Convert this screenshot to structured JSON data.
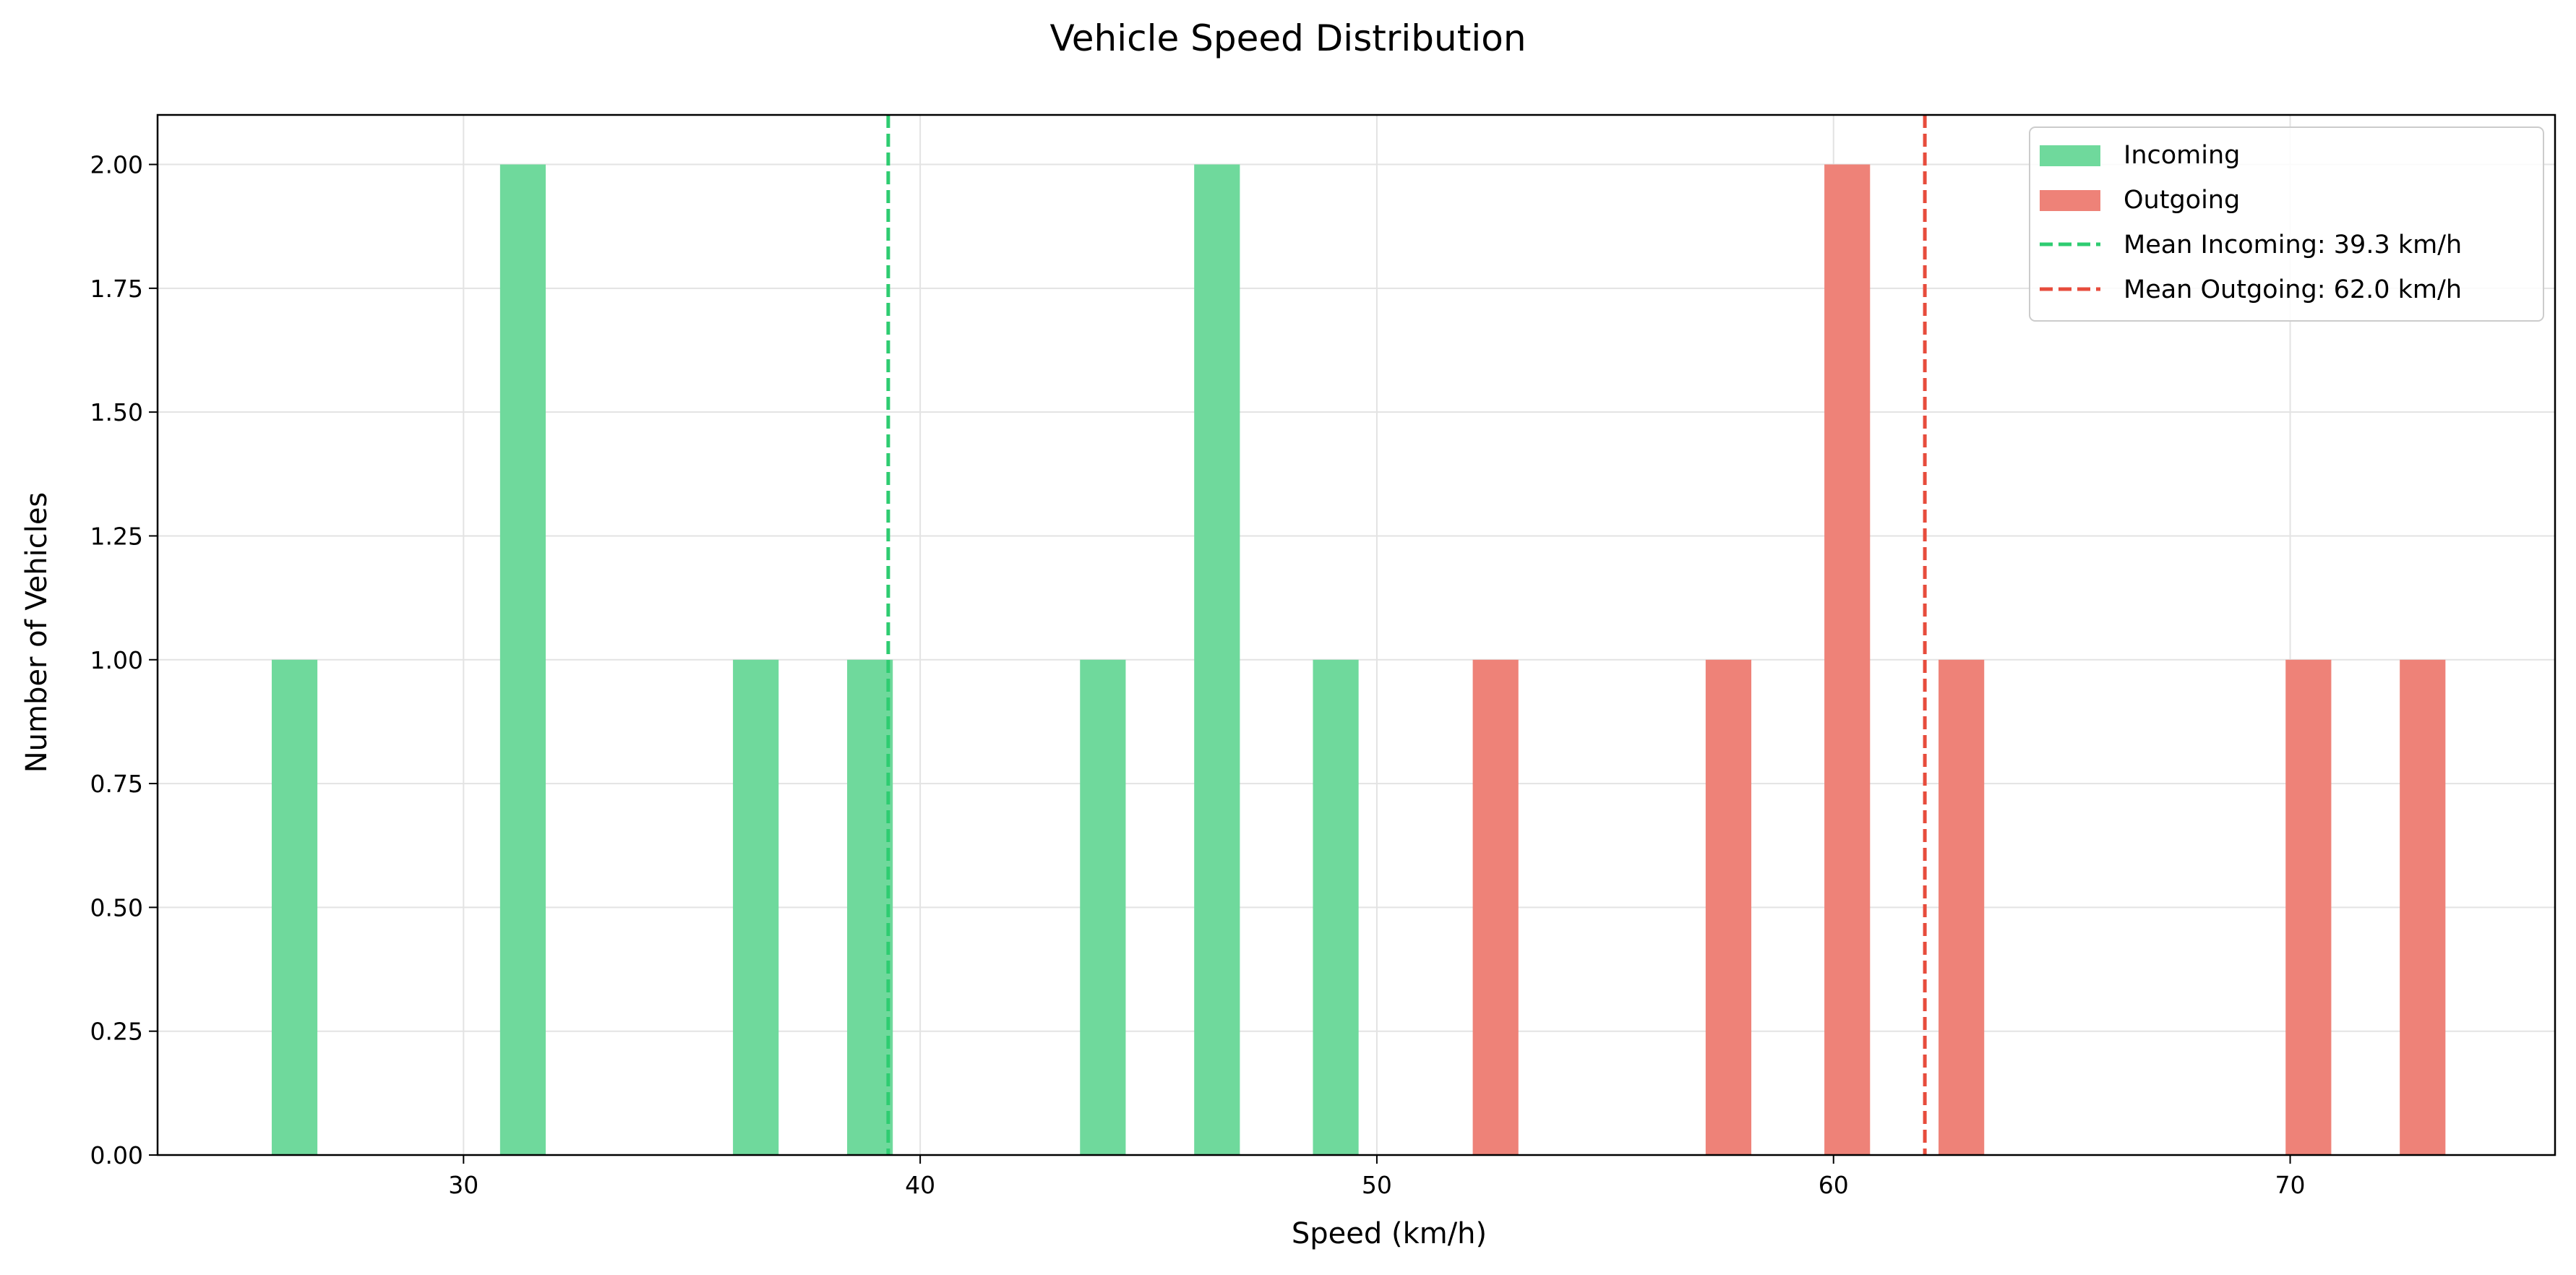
{
  "chart_data": {
    "type": "bar",
    "title": "Vehicle Speed Distribution",
    "xlabel": "Speed (km/h)",
    "ylabel": "Number of Vehicles",
    "xlim": [
      23.3,
      75.8
    ],
    "ylim": [
      0,
      2.1
    ],
    "xticks": [
      30,
      40,
      50,
      60,
      70
    ],
    "xtick_labels": [
      "30",
      "40",
      "50",
      "60",
      "70"
    ],
    "yticks": [
      0,
      0.25,
      0.5,
      0.75,
      1.0,
      1.25,
      1.5,
      1.75,
      2.0
    ],
    "ytick_labels": [
      "0.00",
      "0.25",
      "0.50",
      "0.75",
      "1.00",
      "1.25",
      "1.50",
      "1.75",
      "2.00"
    ],
    "grid": true,
    "legend_position": "top-right",
    "bar_width": 1.0,
    "series": [
      {
        "name": "Incoming",
        "color": "#6fd99c",
        "bars": [
          {
            "x": 26.3,
            "count": 1
          },
          {
            "x": 31.3,
            "count": 2
          },
          {
            "x": 36.4,
            "count": 1
          },
          {
            "x": 38.9,
            "count": 1
          },
          {
            "x": 44.0,
            "count": 1
          },
          {
            "x": 46.5,
            "count": 2
          },
          {
            "x": 49.1,
            "count": 1
          }
        ]
      },
      {
        "name": "Outgoing",
        "color": "#ee8278",
        "bars": [
          {
            "x": 52.6,
            "count": 1
          },
          {
            "x": 57.7,
            "count": 1
          },
          {
            "x": 60.3,
            "count": 2
          },
          {
            "x": 62.8,
            "count": 1
          },
          {
            "x": 70.4,
            "count": 1
          },
          {
            "x": 72.9,
            "count": 1
          }
        ]
      }
    ],
    "reference_lines": [
      {
        "name": "Mean Incoming: 39.3 km/h",
        "x": 39.3,
        "color": "#2ecc71",
        "style": "dashed"
      },
      {
        "name": "Mean Outgoing: 62.0 km/h",
        "x": 62.0,
        "color": "#e74c3c",
        "style": "dashed"
      }
    ]
  }
}
